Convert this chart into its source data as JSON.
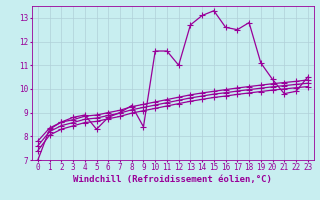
{
  "xlabel": "Windchill (Refroidissement éolien,°C)",
  "background_color": "#c8eef0",
  "line_color": "#990099",
  "grid_color": "#b0d0d8",
  "xlim": [
    -0.5,
    23.5
  ],
  "ylim": [
    7,
    13.5
  ],
  "yticks": [
    7,
    8,
    9,
    10,
    11,
    12,
    13
  ],
  "xticks": [
    0,
    1,
    2,
    3,
    4,
    5,
    6,
    7,
    8,
    9,
    10,
    11,
    12,
    13,
    14,
    15,
    16,
    17,
    18,
    19,
    20,
    21,
    22,
    23
  ],
  "series1_x": [
    0,
    1,
    2,
    3,
    4,
    5,
    6,
    7,
    8,
    9,
    10,
    11,
    12,
    13,
    14,
    15,
    16,
    17,
    18,
    19,
    20,
    21,
    22,
    23
  ],
  "series1_y": [
    7.0,
    8.3,
    8.6,
    8.8,
    8.9,
    8.3,
    8.8,
    9.0,
    9.3,
    8.4,
    11.6,
    11.6,
    11.0,
    12.7,
    13.1,
    13.3,
    12.6,
    12.5,
    12.8,
    11.1,
    10.4,
    9.8,
    9.9,
    10.5
  ],
  "series2_x": [
    0,
    1,
    2,
    3,
    4,
    5,
    6,
    7,
    8,
    9,
    10,
    11,
    12,
    13,
    14,
    15,
    16,
    17,
    18,
    19,
    20,
    21,
    22,
    23
  ],
  "series2_y": [
    7.8,
    8.35,
    8.6,
    8.7,
    8.85,
    8.9,
    9.0,
    9.1,
    9.25,
    9.35,
    9.45,
    9.55,
    9.65,
    9.75,
    9.83,
    9.9,
    9.97,
    10.04,
    10.1,
    10.16,
    10.22,
    10.27,
    10.32,
    10.38
  ],
  "series3_x": [
    0,
    1,
    2,
    3,
    4,
    5,
    6,
    7,
    8,
    9,
    10,
    11,
    12,
    13,
    14,
    15,
    16,
    17,
    18,
    19,
    20,
    21,
    22,
    23
  ],
  "series3_y": [
    7.6,
    8.2,
    8.45,
    8.58,
    8.72,
    8.77,
    8.88,
    8.98,
    9.12,
    9.22,
    9.32,
    9.42,
    9.52,
    9.62,
    9.7,
    9.78,
    9.84,
    9.91,
    9.97,
    10.03,
    10.09,
    10.14,
    10.19,
    10.24
  ],
  "series4_x": [
    0,
    1,
    2,
    3,
    4,
    5,
    6,
    7,
    8,
    9,
    10,
    11,
    12,
    13,
    14,
    15,
    16,
    17,
    18,
    19,
    20,
    21,
    22,
    23
  ],
  "series4_y": [
    7.4,
    8.05,
    8.3,
    8.44,
    8.58,
    8.63,
    8.74,
    8.84,
    8.98,
    9.08,
    9.18,
    9.28,
    9.38,
    9.48,
    9.56,
    9.64,
    9.7,
    9.77,
    9.83,
    9.89,
    9.95,
    10.0,
    10.05,
    10.1
  ],
  "marker": "+",
  "markersize": 4,
  "linewidth": 0.9,
  "tick_fontsize": 5.5,
  "label_fontsize": 6.5
}
